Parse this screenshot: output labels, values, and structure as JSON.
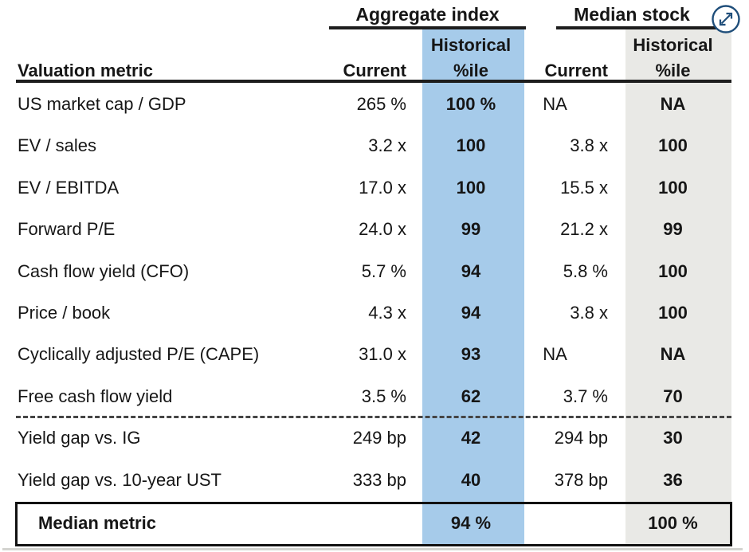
{
  "chart_data": {
    "type": "table",
    "column_groups": [
      {
        "label": "Aggregate index"
      },
      {
        "label": "Median stock"
      }
    ],
    "header": {
      "metric": "Valuation metric",
      "current": "Current",
      "historical_line1": "Historical",
      "historical_line2": "%ile"
    },
    "rows": [
      {
        "metric": "US market cap / GDP",
        "agg_current": "265 %",
        "agg_pctile": "100 %",
        "med_current": "NA",
        "med_pctile": "NA"
      },
      {
        "metric": "EV / sales",
        "agg_current": "3.2 x",
        "agg_pctile": "100",
        "med_current": "3.8 x",
        "med_pctile": "100"
      },
      {
        "metric": "EV / EBITDA",
        "agg_current": "17.0 x",
        "agg_pctile": "100",
        "med_current": "15.5 x",
        "med_pctile": "100"
      },
      {
        "metric": "Forward P/E",
        "agg_current": "24.0 x",
        "agg_pctile": "99",
        "med_current": "21.2 x",
        "med_pctile": "99"
      },
      {
        "metric": "Cash flow yield (CFO)",
        "agg_current": "5.7 %",
        "agg_pctile": "94",
        "med_current": "5.8 %",
        "med_pctile": "100"
      },
      {
        "metric": "Price / book",
        "agg_current": "4.3 x",
        "agg_pctile": "94",
        "med_current": "3.8 x",
        "med_pctile": "100"
      },
      {
        "metric": "Cyclically adjusted P/E (CAPE)",
        "agg_current": "31.0 x",
        "agg_pctile": "93",
        "med_current": "NA",
        "med_pctile": "NA"
      },
      {
        "metric": "Free cash flow yield",
        "agg_current": "3.5 %",
        "agg_pctile": "62",
        "med_current": "3.7 %",
        "med_pctile": "70"
      },
      {
        "metric": "Yield gap vs. IG",
        "agg_current": "249 bp",
        "agg_pctile": "42",
        "med_current": "294 bp",
        "med_pctile": "30"
      },
      {
        "metric": "Yield gap vs. 10-year UST",
        "agg_current": "333 bp",
        "agg_pctile": "40",
        "med_current": "378 bp",
        "med_pctile": "36"
      }
    ],
    "section_break_after_row": 7,
    "footer": {
      "label": "Median metric",
      "agg_pctile": "94 %",
      "med_pctile": "100 %"
    }
  },
  "icons": {
    "expand": "expand-diagonal-arrows-in-circle"
  },
  "colors": {
    "agg_band": "#A6CBEA",
    "med_band": "#E9E9E6",
    "text": "#161616",
    "rule": "#1d1d1d",
    "icon": "#1F4E7A",
    "bottom_edge": "#d4d4d0"
  }
}
